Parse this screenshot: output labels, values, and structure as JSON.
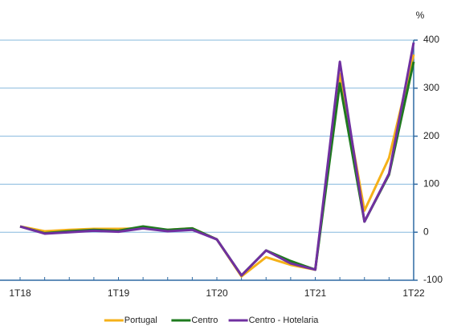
{
  "chart_data": {
    "type": "line",
    "unit": "%",
    "categories": [
      "1T18",
      null,
      null,
      null,
      "1T19",
      null,
      null,
      null,
      "1T20",
      null,
      null,
      null,
      "1T21",
      null,
      null,
      null,
      "1T22"
    ],
    "series": [
      {
        "name": "Portugal",
        "color": "#f5b119",
        "values": [
          12,
          2,
          5,
          7,
          7,
          8,
          5,
          8,
          -15,
          -92,
          -52,
          -68,
          -78,
          330,
          45,
          155,
          370
        ]
      },
      {
        "name": "Centro",
        "color": "#1e7a1e",
        "values": [
          12,
          -2,
          2,
          5,
          3,
          12,
          5,
          8,
          -15,
          -90,
          -38,
          -60,
          -78,
          310,
          22,
          120,
          355
        ]
      },
      {
        "name": "Centro - Hotelaria",
        "color": "#7030a0",
        "values": [
          12,
          -3,
          0,
          3,
          1,
          8,
          2,
          5,
          -15,
          -90,
          -38,
          -65,
          -78,
          355,
          22,
          122,
          395
        ]
      }
    ],
    "ylim": [
      -100,
      400
    ],
    "yticks": [
      -100,
      0,
      100,
      200,
      300,
      400
    ],
    "grid": true,
    "legend": "bottom"
  }
}
